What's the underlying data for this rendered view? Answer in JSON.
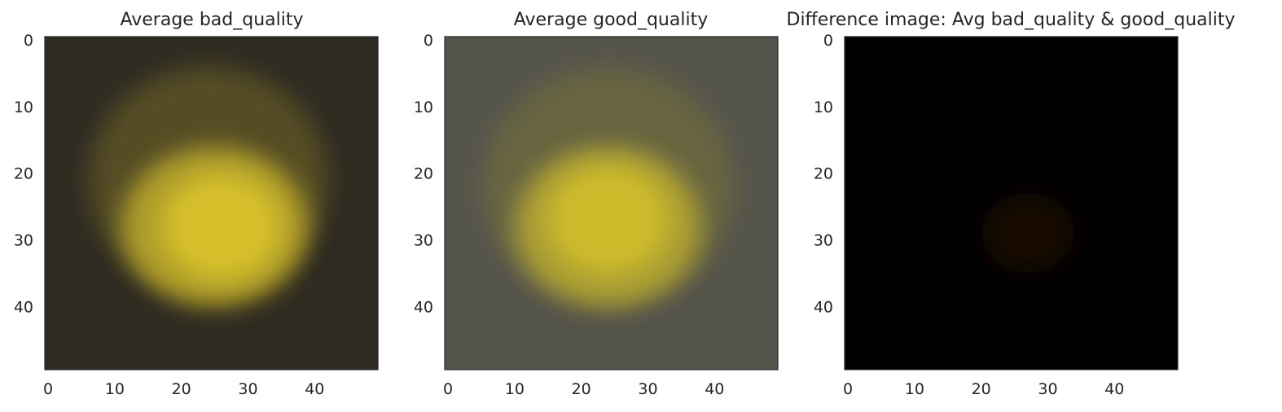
{
  "chart_data": [
    {
      "type": "heatmap",
      "title": "Average bad_quality",
      "xlabel": "",
      "ylabel": "",
      "xlim": [
        -0.5,
        49.5
      ],
      "ylim": [
        49.5,
        -0.5
      ],
      "x_ticks": [
        0,
        10,
        20,
        30,
        40
      ],
      "y_ticks": [
        0,
        10,
        20,
        30,
        40
      ],
      "grid": false,
      "image": {
        "background": "#2f2b22",
        "blobs": [
          {
            "cx": 24,
            "cy": 21,
            "rx": 18,
            "ry": 17,
            "color": "#6e6427",
            "opacity": 0.6
          },
          {
            "cx": 25,
            "cy": 28,
            "rx": 14,
            "ry": 12,
            "color": "#b9a62a",
            "opacity": 0.9
          },
          {
            "cx": 26,
            "cy": 28,
            "rx": 9,
            "ry": 8,
            "color": "#d5bf2a",
            "opacity": 1.0
          }
        ]
      }
    },
    {
      "type": "heatmap",
      "title": "Average good_quality",
      "xlabel": "",
      "ylabel": "",
      "xlim": [
        -0.5,
        49.5
      ],
      "ylim": [
        49.5,
        -0.5
      ],
      "x_ticks": [
        0,
        10,
        20,
        30,
        40
      ],
      "y_ticks": [
        0,
        10,
        20,
        30,
        40
      ],
      "grid": false,
      "image": {
        "background": "#55544c",
        "blobs": [
          {
            "cx": 24,
            "cy": 22,
            "rx": 19,
            "ry": 18,
            "color": "#6f6c3e",
            "opacity": 0.7
          },
          {
            "cx": 24,
            "cy": 28,
            "rx": 14,
            "ry": 12,
            "color": "#b3a533",
            "opacity": 0.9
          },
          {
            "cx": 24,
            "cy": 27,
            "rx": 9,
            "ry": 8,
            "color": "#cfbb2c",
            "opacity": 1.0
          }
        ]
      }
    },
    {
      "type": "heatmap",
      "title": "Difference image: Avg bad_quality & good_quality",
      "xlabel": "",
      "ylabel": "",
      "xlim": [
        -0.5,
        49.5
      ],
      "ylim": [
        49.5,
        -0.5
      ],
      "x_ticks": [
        0,
        10,
        20,
        30,
        40
      ],
      "y_ticks": [
        0,
        10,
        20,
        30,
        40
      ],
      "grid": false,
      "image": {
        "background": "#000000",
        "blobs": [
          {
            "cx": 27,
            "cy": 29,
            "rx": 7,
            "ry": 6,
            "color": "#1a0c06",
            "opacity": 0.8
          }
        ]
      }
    }
  ],
  "colors": {
    "axes_spine": "#262626",
    "text": "#262626"
  }
}
